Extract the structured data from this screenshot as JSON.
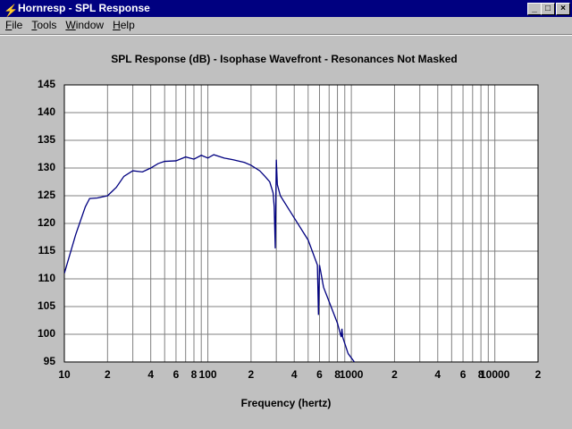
{
  "window": {
    "title": "Hornresp - SPL Response",
    "menu": [
      "File",
      "Tools",
      "Window",
      "Help"
    ]
  },
  "chart_data": {
    "type": "line",
    "title": "SPL Response (dB) - Isophase Wavefront - Resonances Not Masked",
    "x_label": "Frequency (hertz)",
    "x_scale": "log",
    "grid": true,
    "color": "#000080",
    "xlim": [
      10,
      20000
    ],
    "xticks": [
      10,
      {
        "value": 20,
        "label": "2"
      },
      {
        "value": 40,
        "label": "4"
      },
      {
        "value": 60,
        "label": "6"
      },
      {
        "value": 80,
        "label": "8"
      },
      100,
      {
        "value": 200,
        "label": "2"
      },
      {
        "value": 400,
        "label": "4"
      },
      {
        "value": 600,
        "label": "6"
      },
      {
        "value": 800,
        "label": "8"
      },
      1000,
      {
        "value": 2000,
        "label": "2"
      },
      {
        "value": 4000,
        "label": "4"
      },
      {
        "value": 6000,
        "label": "6"
      },
      {
        "value": 8000,
        "label": "8"
      },
      10000,
      {
        "value": 20000,
        "label": "2"
      }
    ],
    "x_minor_gridlines": [
      30,
      50,
      70,
      90,
      300,
      500,
      700,
      900,
      3000,
      5000,
      7000,
      9000
    ],
    "ylim": [
      95,
      145
    ],
    "yticks": [
      95,
      100,
      105,
      110,
      115,
      120,
      125,
      130,
      135,
      140,
      145
    ],
    "x": [
      10,
      12,
      14,
      15,
      17,
      20,
      23,
      26,
      30,
      35,
      40,
      45,
      50,
      60,
      70,
      80,
      90,
      100,
      110,
      130,
      150,
      180,
      200,
      230,
      250,
      270,
      285,
      290,
      295,
      300,
      305,
      320,
      400,
      500,
      580,
      590,
      600,
      640,
      800,
      850,
      860,
      870,
      950,
      1050
    ],
    "values": [
      111,
      118,
      123,
      124.5,
      124.6,
      125,
      126.5,
      128.5,
      129.5,
      129.3,
      130,
      130.8,
      131.2,
      131.3,
      132,
      131.6,
      132.3,
      131.8,
      132.4,
      131.8,
      131.5,
      131,
      130.5,
      129.5,
      128.5,
      127.5,
      125.5,
      123,
      115.5,
      131.5,
      127,
      125,
      121,
      117,
      112.5,
      103.5,
      112.5,
      108.5,
      102,
      99.5,
      101,
      99.5,
      96.5,
      95
    ]
  }
}
